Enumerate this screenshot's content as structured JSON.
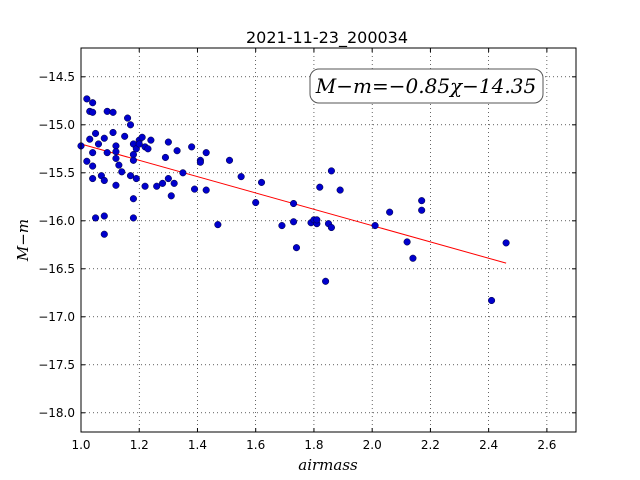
{
  "chart_data": {
    "type": "scatter",
    "title": "2021-11-23_200034",
    "xlabel": "airmass",
    "ylabel": "M−m",
    "xlim": [
      1.0,
      2.7
    ],
    "ylim": [
      -18.2,
      -14.2
    ],
    "x_ticks": [
      1.0,
      1.2,
      1.4,
      1.6,
      1.8,
      2.0,
      2.2,
      2.4,
      2.6
    ],
    "x_tick_labels": [
      "1.0",
      "1.2",
      "1.4",
      "1.6",
      "1.8",
      "2.0",
      "2.2",
      "2.4",
      "2.6"
    ],
    "y_ticks": [
      -14.5,
      -15.0,
      -15.5,
      -16.0,
      -16.5,
      -17.0,
      -17.5,
      -18.0
    ],
    "y_tick_labels": [
      "−14.5",
      "−15.0",
      "−15.5",
      "−16.0",
      "−16.5",
      "−17.0",
      "−17.5",
      "−18.0"
    ],
    "grid": true,
    "annotation": "M−m=−0.85χ−14.35",
    "fit": {
      "slope": -0.85,
      "intercept": -14.35,
      "x_range": [
        1.0,
        2.46
      ],
      "color": "#ff0000"
    },
    "point_color": "#0000cc",
    "points": [
      [
        1.0,
        -15.22
      ],
      [
        1.02,
        -15.38
      ],
      [
        1.02,
        -14.73
      ],
      [
        1.03,
        -14.86
      ],
      [
        1.04,
        -14.77
      ],
      [
        1.04,
        -14.87
      ],
      [
        1.03,
        -15.15
      ],
      [
        1.04,
        -15.29
      ],
      [
        1.04,
        -15.43
      ],
      [
        1.04,
        -15.56
      ],
      [
        1.05,
        -15.09
      ],
      [
        1.06,
        -15.2
      ],
      [
        1.07,
        -15.53
      ],
      [
        1.08,
        -15.58
      ],
      [
        1.08,
        -15.14
      ],
      [
        1.09,
        -15.29
      ],
      [
        1.09,
        -14.86
      ],
      [
        1.11,
        -14.87
      ],
      [
        1.11,
        -15.08
      ],
      [
        1.12,
        -15.22
      ],
      [
        1.12,
        -15.28
      ],
      [
        1.12,
        -15.35
      ],
      [
        1.13,
        -15.42
      ],
      [
        1.14,
        -15.49
      ],
      [
        1.12,
        -15.63
      ],
      [
        1.15,
        -15.12
      ],
      [
        1.16,
        -14.93
      ],
      [
        1.17,
        -15.0
      ],
      [
        1.17,
        -15.53
      ],
      [
        1.18,
        -15.2
      ],
      [
        1.18,
        -15.31
      ],
      [
        1.18,
        -15.37
      ],
      [
        1.19,
        -15.25
      ],
      [
        1.19,
        -15.56
      ],
      [
        1.2,
        -15.16
      ],
      [
        1.2,
        -15.2
      ],
      [
        1.21,
        -15.13
      ],
      [
        1.22,
        -15.23
      ],
      [
        1.23,
        -15.25
      ],
      [
        1.24,
        -15.16
      ],
      [
        1.22,
        -15.64
      ],
      [
        1.18,
        -15.77
      ],
      [
        1.18,
        -15.97
      ],
      [
        1.08,
        -15.95
      ],
      [
        1.05,
        -15.97
      ],
      [
        1.08,
        -16.14
      ],
      [
        1.26,
        -15.64
      ],
      [
        1.28,
        -15.61
      ],
      [
        1.29,
        -15.34
      ],
      [
        1.3,
        -15.56
      ],
      [
        1.3,
        -15.18
      ],
      [
        1.31,
        -15.74
      ],
      [
        1.32,
        -15.61
      ],
      [
        1.33,
        -15.27
      ],
      [
        1.35,
        -15.5
      ],
      [
        1.38,
        -15.23
      ],
      [
        1.39,
        -15.67
      ],
      [
        1.41,
        -15.37
      ],
      [
        1.41,
        -15.39
      ],
      [
        1.43,
        -15.29
      ],
      [
        1.43,
        -15.68
      ],
      [
        1.47,
        -16.04
      ],
      [
        1.51,
        -15.37
      ],
      [
        1.55,
        -15.54
      ],
      [
        1.6,
        -15.81
      ],
      [
        1.62,
        -15.6
      ],
      [
        1.69,
        -16.05
      ],
      [
        1.73,
        -15.82
      ],
      [
        1.73,
        -16.01
      ],
      [
        1.74,
        -16.28
      ],
      [
        1.79,
        -16.02
      ],
      [
        1.8,
        -15.99
      ],
      [
        1.81,
        -16.03
      ],
      [
        1.81,
        -15.99
      ],
      [
        1.82,
        -15.65
      ],
      [
        1.84,
        -16.63
      ],
      [
        1.85,
        -16.03
      ],
      [
        1.86,
        -15.48
      ],
      [
        1.86,
        -16.07
      ],
      [
        1.89,
        -15.68
      ],
      [
        2.01,
        -16.05
      ],
      [
        2.06,
        -15.91
      ],
      [
        2.12,
        -16.22
      ],
      [
        2.14,
        -16.39
      ],
      [
        2.17,
        -15.89
      ],
      [
        2.17,
        -15.79
      ],
      [
        2.41,
        -16.83
      ],
      [
        2.46,
        -16.23
      ]
    ]
  }
}
